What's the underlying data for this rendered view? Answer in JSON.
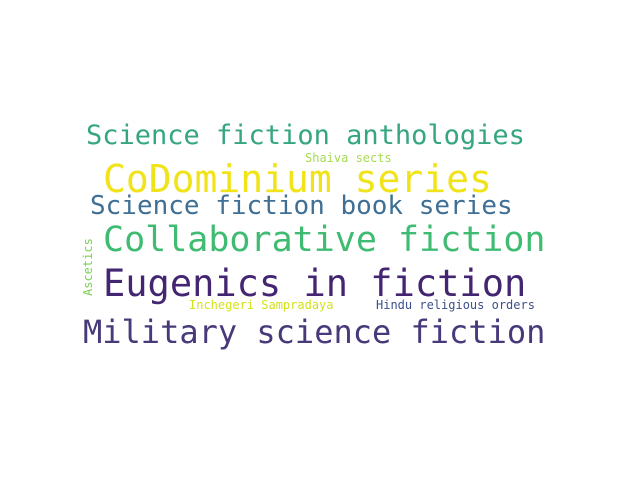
{
  "words": [
    {
      "text": "Science fiction anthologies",
      "color": "#35a67d"
    },
    {
      "text": "Shaiva sects",
      "color": "#a6db52"
    },
    {
      "text": "CoDominium series",
      "color": "#f0e31a"
    },
    {
      "text": "Science fiction book series",
      "color": "#3f6f94"
    },
    {
      "text": "Collaborative fiction",
      "color": "#3fbc72"
    },
    {
      "text": "Eugenics in fiction",
      "color": "#432571"
    },
    {
      "text": "Inchegeri Sampradaya",
      "color": "#d2e21b"
    },
    {
      "text": "Hindu religious orders",
      "color": "#3c4f8a"
    },
    {
      "text": "Military science fiction",
      "color": "#48397a"
    },
    {
      "text": "Ascetics",
      "color": "#79d151"
    }
  ]
}
